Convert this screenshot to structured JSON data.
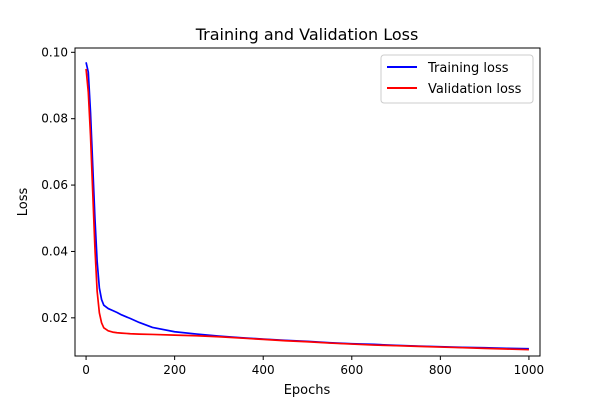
{
  "chart_data": {
    "type": "line",
    "title": "Training and Validation Loss",
    "xlabel": "Epochs",
    "ylabel": "Loss",
    "xlim": [
      -25,
      1025
    ],
    "ylim": [
      0.0085,
      0.1013
    ],
    "xticks": [
      0,
      200,
      400,
      600,
      800,
      1000
    ],
    "yticks": [
      0.02,
      0.04,
      0.06,
      0.08,
      0.1
    ],
    "ytick_labels": [
      "0.02",
      "0.04",
      "0.06",
      "0.08",
      "0.10"
    ],
    "grid": false,
    "legend_position": "top-right",
    "series": [
      {
        "name": "Training loss",
        "color": "#0000ff",
        "x": [
          0,
          5,
          10,
          15,
          20,
          25,
          30,
          35,
          40,
          50,
          60,
          70,
          80,
          100,
          120,
          150,
          200,
          250,
          300,
          350,
          400,
          450,
          500,
          550,
          600,
          650,
          700,
          750,
          800,
          850,
          900,
          950,
          1000
        ],
        "y": [
          0.097,
          0.094,
          0.082,
          0.066,
          0.05,
          0.037,
          0.029,
          0.0255,
          0.0238,
          0.0228,
          0.0222,
          0.0216,
          0.0209,
          0.0198,
          0.0186,
          0.0171,
          0.0158,
          0.0151,
          0.0145,
          0.014,
          0.0136,
          0.0132,
          0.0129,
          0.0125,
          0.0122,
          0.012,
          0.0117,
          0.0115,
          0.0113,
          0.0111,
          0.011,
          0.0108,
          0.0107
        ]
      },
      {
        "name": "Validation loss",
        "color": "#ff0000",
        "x": [
          0,
          5,
          10,
          15,
          20,
          25,
          30,
          35,
          40,
          50,
          60,
          70,
          80,
          100,
          120,
          150,
          200,
          250,
          300,
          350,
          400,
          450,
          500,
          550,
          600,
          650,
          700,
          750,
          800,
          850,
          900,
          950,
          1000
        ],
        "y": [
          0.095,
          0.088,
          0.075,
          0.058,
          0.041,
          0.028,
          0.0215,
          0.0185,
          0.017,
          0.0161,
          0.0157,
          0.0155,
          0.0154,
          0.0152,
          0.0151,
          0.015,
          0.0148,
          0.0146,
          0.0143,
          0.0139,
          0.0135,
          0.0131,
          0.0128,
          0.0124,
          0.0121,
          0.0118,
          0.0116,
          0.0114,
          0.0112,
          0.011,
          0.0108,
          0.0106,
          0.0104
        ]
      }
    ]
  }
}
